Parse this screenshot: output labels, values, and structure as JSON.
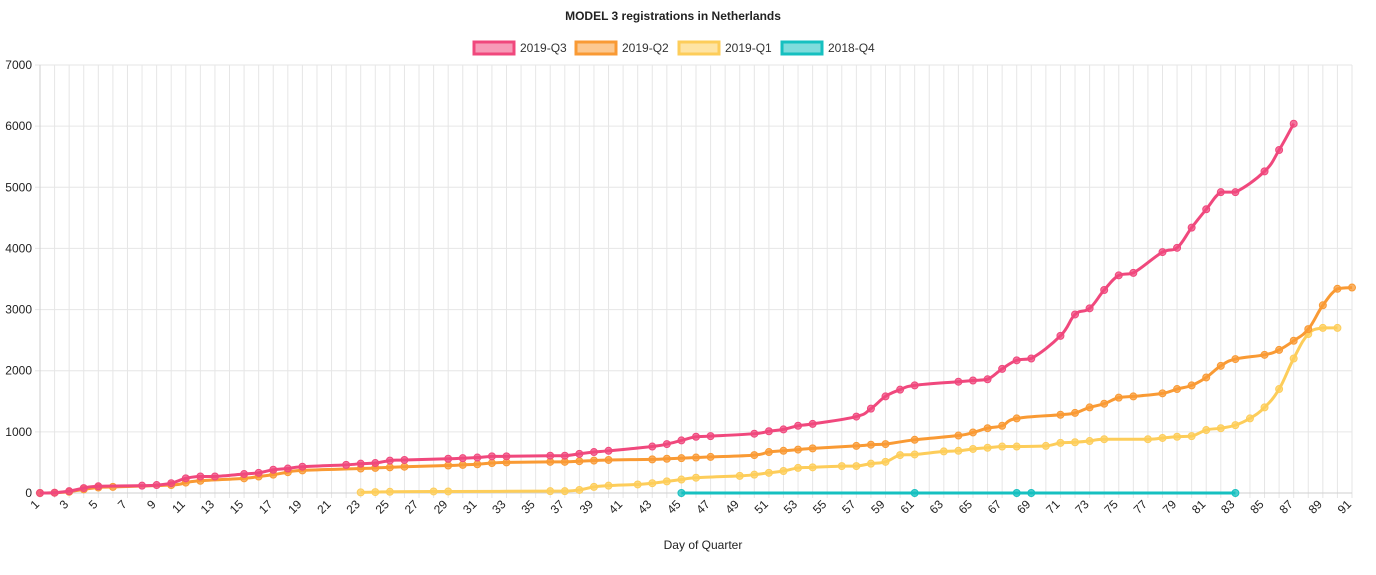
{
  "chart_data": {
    "type": "line",
    "title": "MODEL 3 registrations in Netherlands",
    "xlabel": "Day of Quarter",
    "ylabel": "",
    "xlim": [
      1,
      91
    ],
    "ylim": [
      0,
      7000
    ],
    "yticks": [
      0,
      1000,
      2000,
      3000,
      4000,
      5000,
      6000,
      7000
    ],
    "xticks": [
      1,
      3,
      5,
      7,
      9,
      11,
      13,
      15,
      17,
      19,
      21,
      23,
      25,
      27,
      29,
      31,
      33,
      35,
      37,
      39,
      41,
      43,
      45,
      47,
      49,
      51,
      53,
      55,
      57,
      59,
      61,
      63,
      65,
      67,
      69,
      71,
      73,
      75,
      77,
      79,
      81,
      83,
      85,
      87,
      89,
      91
    ],
    "grid": true,
    "legend_position": "top",
    "series": [
      {
        "name": "2019-Q3",
        "color": "#f0487d",
        "points": [
          [
            1,
            0
          ],
          [
            2,
            5
          ],
          [
            3,
            30
          ],
          [
            4,
            80
          ],
          [
            5,
            110
          ],
          [
            8,
            120
          ],
          [
            9,
            130
          ],
          [
            10,
            160
          ],
          [
            11,
            240
          ],
          [
            12,
            270
          ],
          [
            13,
            270
          ],
          [
            15,
            310
          ],
          [
            16,
            330
          ],
          [
            17,
            380
          ],
          [
            18,
            400
          ],
          [
            19,
            430
          ],
          [
            22,
            460
          ],
          [
            23,
            480
          ],
          [
            24,
            490
          ],
          [
            25,
            530
          ],
          [
            26,
            540
          ],
          [
            29,
            560
          ],
          [
            30,
            570
          ],
          [
            31,
            580
          ],
          [
            32,
            600
          ],
          [
            33,
            600
          ],
          [
            36,
            610
          ],
          [
            37,
            610
          ],
          [
            38,
            640
          ],
          [
            39,
            670
          ],
          [
            40,
            690
          ],
          [
            43,
            760
          ],
          [
            44,
            800
          ],
          [
            45,
            860
          ],
          [
            46,
            920
          ],
          [
            47,
            930
          ],
          [
            50,
            970
          ],
          [
            51,
            1010
          ],
          [
            52,
            1040
          ],
          [
            53,
            1100
          ],
          [
            54,
            1130
          ],
          [
            57,
            1250
          ],
          [
            58,
            1380
          ],
          [
            59,
            1580
          ],
          [
            60,
            1690
          ],
          [
            61,
            1760
          ],
          [
            64,
            1820
          ],
          [
            65,
            1840
          ],
          [
            66,
            1860
          ],
          [
            67,
            2030
          ],
          [
            68,
            2170
          ],
          [
            69,
            2200
          ],
          [
            71,
            2570
          ],
          [
            72,
            2920
          ],
          [
            73,
            3020
          ],
          [
            74,
            3320
          ],
          [
            75,
            3560
          ],
          [
            76,
            3600
          ],
          [
            78,
            3940
          ],
          [
            79,
            4010
          ],
          [
            80,
            4340
          ],
          [
            81,
            4640
          ],
          [
            82,
            4920
          ],
          [
            83,
            4920
          ],
          [
            85,
            5260
          ],
          [
            86,
            5610
          ],
          [
            87,
            6040
          ]
        ]
      },
      {
        "name": "2019-Q2",
        "color": "#f99a34",
        "points": [
          [
            1,
            0
          ],
          [
            2,
            5
          ],
          [
            3,
            20
          ],
          [
            4,
            60
          ],
          [
            5,
            90
          ],
          [
            6,
            100
          ],
          [
            10,
            130
          ],
          [
            11,
            170
          ],
          [
            12,
            200
          ],
          [
            15,
            240
          ],
          [
            16,
            270
          ],
          [
            17,
            300
          ],
          [
            18,
            340
          ],
          [
            19,
            370
          ],
          [
            23,
            400
          ],
          [
            24,
            410
          ],
          [
            25,
            420
          ],
          [
            26,
            430
          ],
          [
            29,
            450
          ],
          [
            30,
            460
          ],
          [
            31,
            470
          ],
          [
            32,
            490
          ],
          [
            33,
            500
          ],
          [
            36,
            510
          ],
          [
            37,
            510
          ],
          [
            38,
            520
          ],
          [
            39,
            530
          ],
          [
            40,
            540
          ],
          [
            43,
            550
          ],
          [
            44,
            560
          ],
          [
            45,
            570
          ],
          [
            46,
            580
          ],
          [
            47,
            590
          ],
          [
            50,
            620
          ],
          [
            51,
            670
          ],
          [
            52,
            690
          ],
          [
            53,
            710
          ],
          [
            54,
            730
          ],
          [
            57,
            770
          ],
          [
            58,
            790
          ],
          [
            59,
            800
          ],
          [
            61,
            870
          ],
          [
            64,
            940
          ],
          [
            65,
            990
          ],
          [
            66,
            1060
          ],
          [
            67,
            1100
          ],
          [
            68,
            1220
          ],
          [
            71,
            1280
          ],
          [
            72,
            1310
          ],
          [
            73,
            1400
          ],
          [
            74,
            1460
          ],
          [
            75,
            1560
          ],
          [
            76,
            1580
          ],
          [
            78,
            1630
          ],
          [
            79,
            1700
          ],
          [
            80,
            1760
          ],
          [
            81,
            1890
          ],
          [
            82,
            2080
          ],
          [
            83,
            2190
          ],
          [
            85,
            2260
          ],
          [
            86,
            2340
          ],
          [
            87,
            2490
          ],
          [
            88,
            2680
          ],
          [
            89,
            3070
          ],
          [
            90,
            3340
          ],
          [
            91,
            3360
          ]
        ]
      },
      {
        "name": "2019-Q1",
        "color": "#fdcd5a",
        "points": [
          [
            23,
            10
          ],
          [
            24,
            15
          ],
          [
            25,
            20
          ],
          [
            28,
            25
          ],
          [
            29,
            25
          ],
          [
            36,
            30
          ],
          [
            37,
            30
          ],
          [
            38,
            50
          ],
          [
            39,
            100
          ],
          [
            40,
            120
          ],
          [
            42,
            140
          ],
          [
            43,
            160
          ],
          [
            44,
            190
          ],
          [
            45,
            220
          ],
          [
            46,
            250
          ],
          [
            49,
            280
          ],
          [
            50,
            300
          ],
          [
            51,
            330
          ],
          [
            52,
            360
          ],
          [
            53,
            410
          ],
          [
            54,
            420
          ],
          [
            56,
            440
          ],
          [
            57,
            440
          ],
          [
            58,
            480
          ],
          [
            59,
            510
          ],
          [
            60,
            620
          ],
          [
            61,
            630
          ],
          [
            63,
            680
          ],
          [
            64,
            690
          ],
          [
            65,
            720
          ],
          [
            66,
            740
          ],
          [
            67,
            760
          ],
          [
            68,
            760
          ],
          [
            70,
            770
          ],
          [
            71,
            820
          ],
          [
            72,
            830
          ],
          [
            73,
            850
          ],
          [
            74,
            880
          ],
          [
            77,
            880
          ],
          [
            78,
            900
          ],
          [
            79,
            920
          ],
          [
            80,
            930
          ],
          [
            81,
            1030
          ],
          [
            82,
            1060
          ],
          [
            83,
            1110
          ],
          [
            84,
            1220
          ],
          [
            85,
            1400
          ],
          [
            86,
            1700
          ],
          [
            87,
            2200
          ],
          [
            88,
            2600
          ],
          [
            89,
            2700
          ],
          [
            90,
            2700
          ]
        ]
      },
      {
        "name": "2018-Q4",
        "color": "#16c0c0",
        "points": [
          [
            45,
            0
          ],
          [
            61,
            0
          ],
          [
            68,
            0
          ],
          [
            69,
            0
          ],
          [
            83,
            0
          ]
        ]
      }
    ]
  }
}
